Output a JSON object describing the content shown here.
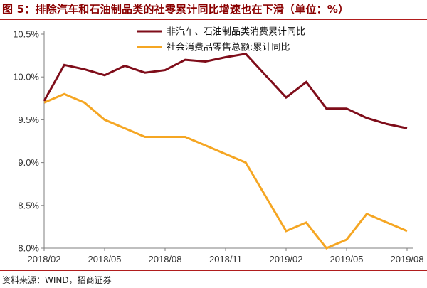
{
  "figure": {
    "title": "图 5：排除汽车和石油制品类的社零累计同比增速也在下滑（单位：%）",
    "source": "资料来源：WIND，招商证券"
  },
  "colors": {
    "series_1": "#7f0d1a",
    "series_2": "#f5a623",
    "axis": "#7f7f7f",
    "title": "#8b0000"
  },
  "chart_data": {
    "type": "line",
    "x": [
      "2018/02",
      "2018/03",
      "2018/04",
      "2018/05",
      "2018/06",
      "2018/07",
      "2018/08",
      "2018/09",
      "2018/10",
      "2018/11",
      "2018/12",
      "2019/01",
      "2019/02",
      "2019/03",
      "2019/04",
      "2019/05",
      "2019/06",
      "2019/07",
      "2019/08"
    ],
    "x_ticks": [
      "2018/02",
      "2018/05",
      "2018/08",
      "2018/11",
      "2019/02",
      "2019/05",
      "2019/08"
    ],
    "y_ticks": [
      "8.0%",
      "8.5%",
      "9.0%",
      "9.5%",
      "10.0%",
      "10.5%"
    ],
    "ylim": [
      8.0,
      10.5
    ],
    "grid": false,
    "legend_position": "top-right",
    "series": [
      {
        "name": "非汽车、石油制品类消费累计同比",
        "values": [
          9.72,
          10.14,
          10.09,
          10.02,
          10.13,
          10.05,
          10.08,
          10.2,
          10.18,
          10.23,
          10.27,
          null,
          9.76,
          9.94,
          9.63,
          9.63,
          9.52,
          9.45,
          9.4
        ]
      },
      {
        "name": "社会消费品零售总额:累计同比",
        "values": [
          9.7,
          9.8,
          9.7,
          9.5,
          9.4,
          9.3,
          9.3,
          9.3,
          9.2,
          9.1,
          9.0,
          null,
          8.2,
          8.3,
          8.0,
          8.1,
          8.4,
          8.3,
          8.2
        ]
      }
    ]
  }
}
